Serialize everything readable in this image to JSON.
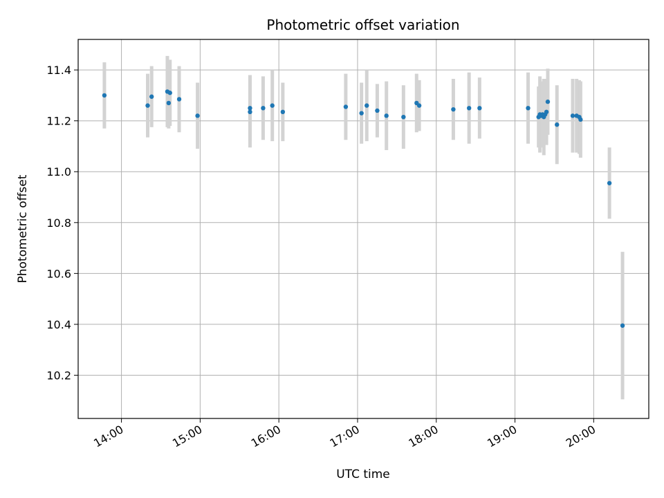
{
  "chart_data": {
    "type": "scatter",
    "title": "Photometric offset variation",
    "xlabel": "UTC time",
    "ylabel": "Photometric offset",
    "grid": true,
    "xlim": [
      "13:27",
      "20:42"
    ],
    "ylim": [
      10.03,
      11.52
    ],
    "x_ticks": [
      "14:00",
      "15:00",
      "16:00",
      "17:00",
      "18:00",
      "19:00",
      "20:00"
    ],
    "y_ticks": [
      "10.2",
      "10.4",
      "10.6",
      "10.8",
      "11.0",
      "11.2",
      "11.4"
    ],
    "colors": {
      "point": "#1f77b4",
      "errorbar": "#d3d3d3",
      "grid": "#b0b0b0"
    },
    "points": [
      {
        "t": "13:47",
        "y": 11.3,
        "err": 0.13
      },
      {
        "t": "14:20",
        "y": 11.26,
        "err": 0.125
      },
      {
        "t": "14:23",
        "y": 11.295,
        "err": 0.12
      },
      {
        "t": "14:35",
        "y": 11.315,
        "err": 0.14
      },
      {
        "t": "14:36",
        "y": 11.27,
        "err": 0.1
      },
      {
        "t": "14:37",
        "y": 11.31,
        "err": 0.13
      },
      {
        "t": "14:44",
        "y": 11.285,
        "err": 0.13
      },
      {
        "t": "14:58",
        "y": 11.22,
        "err": 0.13
      },
      {
        "t": "15:38",
        "y": 11.25,
        "err": 0.13
      },
      {
        "t": "15:38",
        "y": 11.235,
        "err": 0.14
      },
      {
        "t": "15:48",
        "y": 11.25,
        "err": 0.125
      },
      {
        "t": "15:55",
        "y": 11.26,
        "err": 0.14
      },
      {
        "t": "16:03",
        "y": 11.235,
        "err": 0.115
      },
      {
        "t": "16:51",
        "y": 11.255,
        "err": 0.13
      },
      {
        "t": "17:03",
        "y": 11.23,
        "err": 0.12
      },
      {
        "t": "17:07",
        "y": 11.26,
        "err": 0.14
      },
      {
        "t": "17:15",
        "y": 11.24,
        "err": 0.105
      },
      {
        "t": "17:22",
        "y": 11.22,
        "err": 0.135
      },
      {
        "t": "17:35",
        "y": 11.215,
        "err": 0.125
      },
      {
        "t": "17:45",
        "y": 11.27,
        "err": 0.115
      },
      {
        "t": "17:47",
        "y": 11.26,
        "err": 0.1
      },
      {
        "t": "18:13",
        "y": 11.245,
        "err": 0.12
      },
      {
        "t": "18:25",
        "y": 11.25,
        "err": 0.14
      },
      {
        "t": "18:33",
        "y": 11.25,
        "err": 0.12
      },
      {
        "t": "19:10",
        "y": 11.25,
        "err": 0.14
      },
      {
        "t": "19:18",
        "y": 11.215,
        "err": 0.12
      },
      {
        "t": "19:19",
        "y": 11.225,
        "err": 0.15
      },
      {
        "t": "19:20",
        "y": 11.22,
        "err": 0.12
      },
      {
        "t": "19:21",
        "y": 11.225,
        "err": 0.13
      },
      {
        "t": "19:22",
        "y": 11.215,
        "err": 0.15
      },
      {
        "t": "19:23",
        "y": 11.225,
        "err": 0.11
      },
      {
        "t": "19:24",
        "y": 11.235,
        "err": 0.13
      },
      {
        "t": "19:25",
        "y": 11.275,
        "err": 0.13
      },
      {
        "t": "19:32",
        "y": 11.185,
        "err": 0.155
      },
      {
        "t": "19:44",
        "y": 11.22,
        "err": 0.145
      },
      {
        "t": "19:47",
        "y": 11.22,
        "err": 0.145
      },
      {
        "t": "19:49",
        "y": 11.215,
        "err": 0.145
      },
      {
        "t": "19:50",
        "y": 11.205,
        "err": 0.15
      },
      {
        "t": "20:12",
        "y": 10.955,
        "err": 0.14
      },
      {
        "t": "20:22",
        "y": 10.395,
        "err": 0.29
      }
    ]
  }
}
